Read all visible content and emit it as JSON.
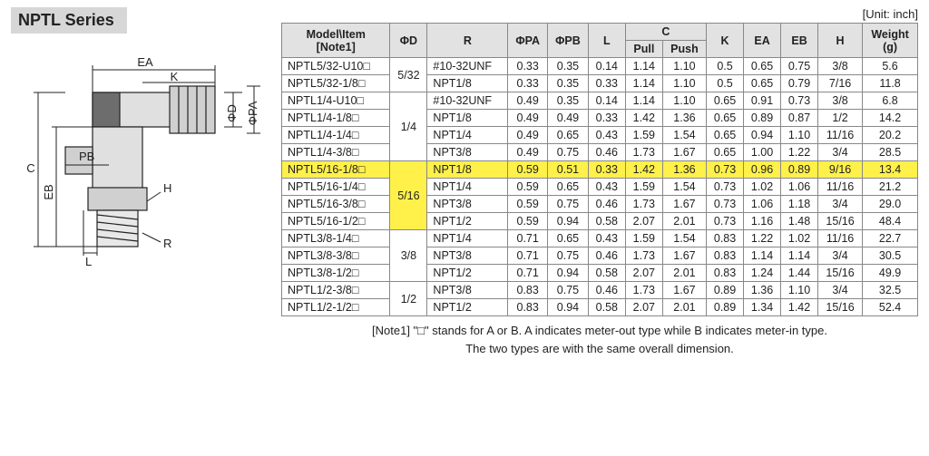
{
  "series_title": "NPTL Series",
  "unit_label": "[Unit: inch]",
  "diagram": {
    "labels": [
      "EA",
      "K",
      "ΦD",
      "ΦPA",
      "PB",
      "C",
      "EB",
      "L",
      "H",
      "R"
    ],
    "stroke": "#222222",
    "fill_body": "#e0e0e0",
    "fill_dark": "#6d6d6d"
  },
  "table": {
    "header_bg": "#e2e2e2",
    "border_color": "#888888",
    "highlight_bg": "#fff04a",
    "headers": {
      "model": "Model\\Item\n[Note1]",
      "phiD": "ΦD",
      "r": "R",
      "phiPA": "ΦPA",
      "phiPB": "ΦPB",
      "l": "L",
      "c": "C",
      "c_pull": "Pull",
      "c_push": "Push",
      "k": "K",
      "ea": "EA",
      "eb": "EB",
      "h": "H",
      "weight": "Weight\n(g)"
    },
    "phiD_groups": [
      {
        "value": "5/32",
        "span": 2
      },
      {
        "value": "1/4",
        "span": 4
      },
      {
        "value": "5/16",
        "span": 4
      },
      {
        "value": "3/8",
        "span": 3
      },
      {
        "value": "1/2",
        "span": 2
      }
    ],
    "rows": [
      {
        "model": "NPTL5/32-U10□",
        "r": "#10-32UNF",
        "pa": "0.33",
        "pb": "0.35",
        "l": "0.14",
        "cpull": "1.14",
        "cpush": "1.10",
        "k": "0.5",
        "ea": "0.65",
        "eb": "0.75",
        "h": "3/8",
        "w": "5.6"
      },
      {
        "model": "NPTL5/32-1/8□",
        "r": "NPT1/8",
        "pa": "0.33",
        "pb": "0.35",
        "l": "0.33",
        "cpull": "1.14",
        "cpush": "1.10",
        "k": "0.5",
        "ea": "0.65",
        "eb": "0.79",
        "h": "7/16",
        "w": "11.8"
      },
      {
        "model": "NPTL1/4-U10□",
        "r": "#10-32UNF",
        "pa": "0.49",
        "pb": "0.35",
        "l": "0.14",
        "cpull": "1.14",
        "cpush": "1.10",
        "k": "0.65",
        "ea": "0.91",
        "eb": "0.73",
        "h": "3/8",
        "w": "6.8"
      },
      {
        "model": "NPTL1/4-1/8□",
        "r": "NPT1/8",
        "pa": "0.49",
        "pb": "0.49",
        "l": "0.33",
        "cpull": "1.42",
        "cpush": "1.36",
        "k": "0.65",
        "ea": "0.89",
        "eb": "0.87",
        "h": "1/2",
        "w": "14.2"
      },
      {
        "model": "NPTL1/4-1/4□",
        "r": "NPT1/4",
        "pa": "0.49",
        "pb": "0.65",
        "l": "0.43",
        "cpull": "1.59",
        "cpush": "1.54",
        "k": "0.65",
        "ea": "0.94",
        "eb": "1.10",
        "h": "11/16",
        "w": "20.2"
      },
      {
        "model": "NPTL1/4-3/8□",
        "r": "NPT3/8",
        "pa": "0.49",
        "pb": "0.75",
        "l": "0.46",
        "cpull": "1.73",
        "cpush": "1.67",
        "k": "0.65",
        "ea": "1.00",
        "eb": "1.22",
        "h": "3/4",
        "w": "28.5"
      },
      {
        "model": "NPTL5/16-1/8□",
        "r": "NPT1/8",
        "pa": "0.59",
        "pb": "0.51",
        "l": "0.33",
        "cpull": "1.42",
        "cpush": "1.36",
        "k": "0.73",
        "ea": "0.96",
        "eb": "0.89",
        "h": "9/16",
        "w": "13.4",
        "highlight": true
      },
      {
        "model": "NPTL5/16-1/4□",
        "r": "NPT1/4",
        "pa": "0.59",
        "pb": "0.65",
        "l": "0.43",
        "cpull": "1.59",
        "cpush": "1.54",
        "k": "0.73",
        "ea": "1.02",
        "eb": "1.06",
        "h": "11/16",
        "w": "21.2"
      },
      {
        "model": "NPTL5/16-3/8□",
        "r": "NPT3/8",
        "pa": "0.59",
        "pb": "0.75",
        "l": "0.46",
        "cpull": "1.73",
        "cpush": "1.67",
        "k": "0.73",
        "ea": "1.06",
        "eb": "1.18",
        "h": "3/4",
        "w": "29.0"
      },
      {
        "model": "NPTL5/16-1/2□",
        "r": "NPT1/2",
        "pa": "0.59",
        "pb": "0.94",
        "l": "0.58",
        "cpull": "2.07",
        "cpush": "2.01",
        "k": "0.73",
        "ea": "1.16",
        "eb": "1.48",
        "h": "15/16",
        "w": "48.4"
      },
      {
        "model": "NPTL3/8-1/4□",
        "r": "NPT1/4",
        "pa": "0.71",
        "pb": "0.65",
        "l": "0.43",
        "cpull": "1.59",
        "cpush": "1.54",
        "k": "0.83",
        "ea": "1.22",
        "eb": "1.02",
        "h": "11/16",
        "w": "22.7"
      },
      {
        "model": "NPTL3/8-3/8□",
        "r": "NPT3/8",
        "pa": "0.71",
        "pb": "0.75",
        "l": "0.46",
        "cpull": "1.73",
        "cpush": "1.67",
        "k": "0.83",
        "ea": "1.14",
        "eb": "1.14",
        "h": "3/4",
        "w": "30.5"
      },
      {
        "model": "NPTL3/8-1/2□",
        "r": "NPT1/2",
        "pa": "0.71",
        "pb": "0.94",
        "l": "0.58",
        "cpull": "2.07",
        "cpush": "2.01",
        "k": "0.83",
        "ea": "1.24",
        "eb": "1.44",
        "h": "15/16",
        "w": "49.9"
      },
      {
        "model": "NPTL1/2-3/8□",
        "r": "NPT3/8",
        "pa": "0.83",
        "pb": "0.75",
        "l": "0.46",
        "cpull": "1.73",
        "cpush": "1.67",
        "k": "0.89",
        "ea": "1.36",
        "eb": "1.10",
        "h": "3/4",
        "w": "32.5"
      },
      {
        "model": "NPTL1/2-1/2□",
        "r": "NPT1/2",
        "pa": "0.83",
        "pb": "0.94",
        "l": "0.58",
        "cpull": "2.07",
        "cpush": "2.01",
        "k": "0.89",
        "ea": "1.34",
        "eb": "1.42",
        "h": "15/16",
        "w": "52.4"
      }
    ]
  },
  "notes": {
    "line1": "[Note1] \"□\" stands for A or B. A indicates meter-out type while B indicates meter-in type.",
    "line2": "The two types are with the same overall dimension."
  }
}
